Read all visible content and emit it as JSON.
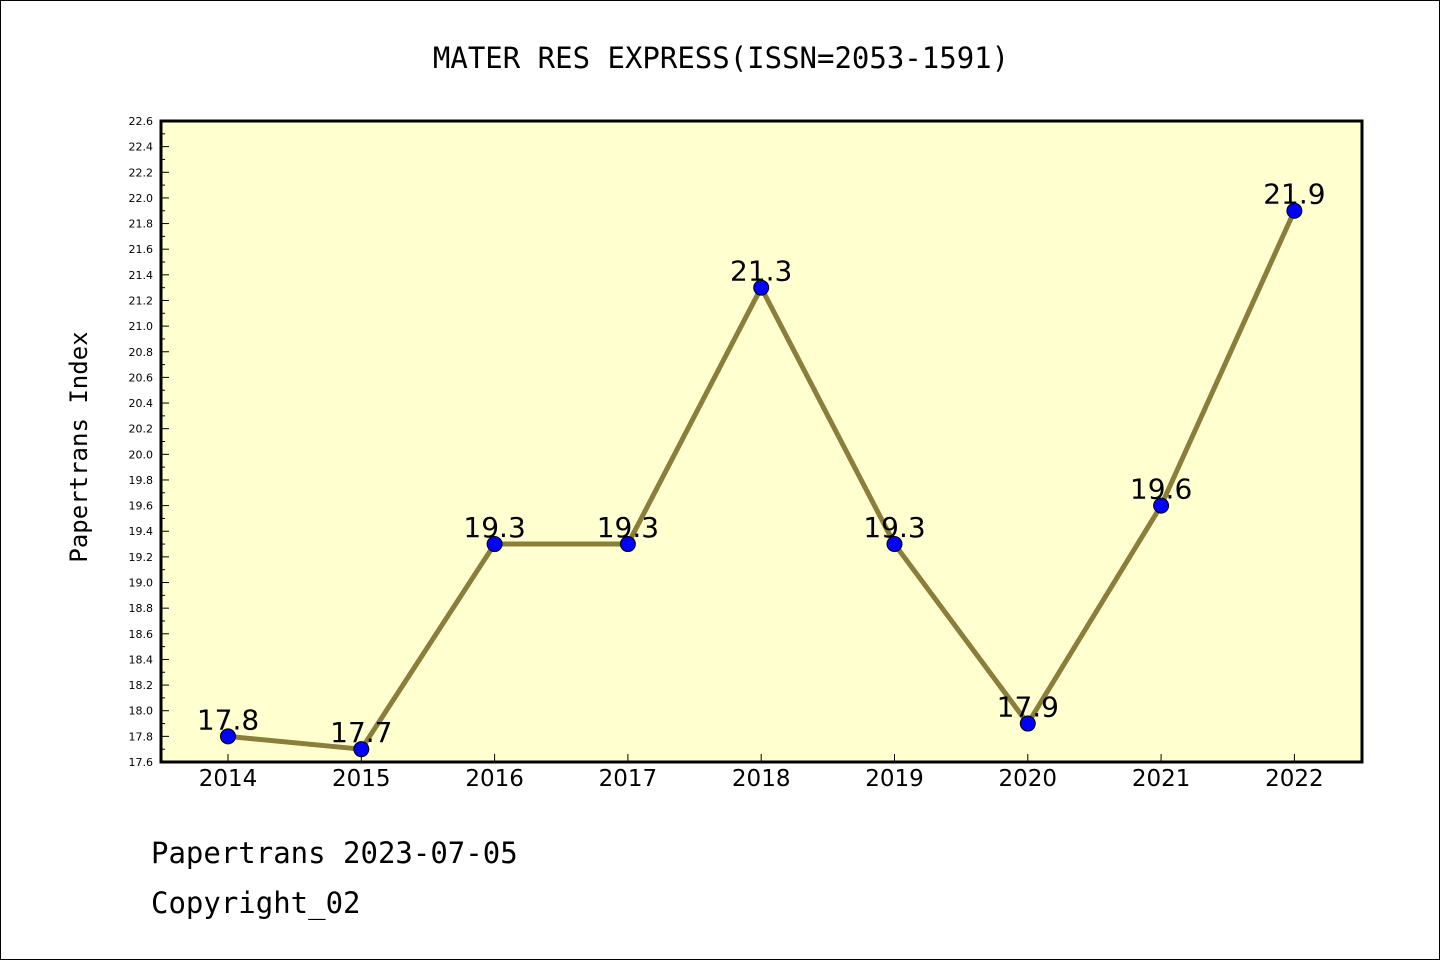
{
  "chart_data": {
    "type": "line",
    "title": "MATER RES EXPRESS(ISSN=2053-1591)",
    "xlabel": "",
    "ylabel": "Papertrans Index",
    "categories": [
      "2014",
      "2015",
      "2016",
      "2017",
      "2018",
      "2019",
      "2020",
      "2021",
      "2022"
    ],
    "series": [
      {
        "values": [
          17.8,
          17.7,
          19.3,
          19.3,
          21.3,
          19.3,
          17.9,
          19.6,
          21.9
        ],
        "data_labels": [
          "17.8",
          "17.7",
          "19.3",
          "19.3",
          "21.3",
          "19.3",
          "17.9",
          "19.6",
          "21.9"
        ]
      }
    ],
    "ylim": [
      17.6,
      22.6
    ],
    "y_ticks": [
      "17.6",
      "17.8",
      "18.0",
      "18.2",
      "18.4",
      "18.6",
      "18.8",
      "19.0",
      "19.2",
      "19.4",
      "19.6",
      "19.8",
      "20.0",
      "20.2",
      "20.4",
      "20.6",
      "20.8",
      "21.0",
      "21.2",
      "21.4",
      "21.6",
      "21.8",
      "22.0",
      "22.2",
      "22.4",
      "22.6"
    ],
    "grid": false,
    "legend": "none",
    "colors": {
      "plot_background": "#ffffd0",
      "line": "#8b7d3a",
      "marker": "#0000ff",
      "axis": "#000000"
    }
  },
  "footer": {
    "date_text": "Papertrans 2023-07-05",
    "copyright_text": "Copyright_02"
  }
}
